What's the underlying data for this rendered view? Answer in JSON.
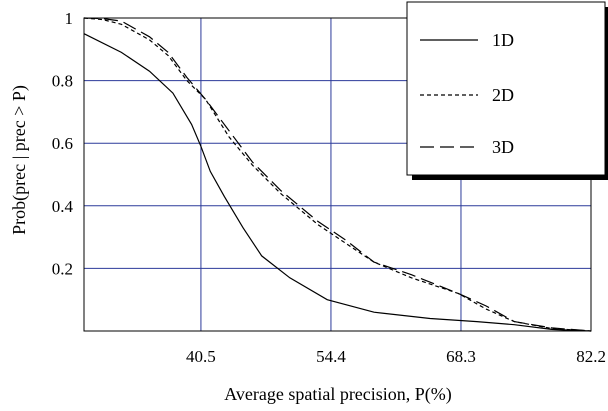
{
  "chart_data": {
    "type": "line",
    "xlabel": "Average spatial precision,  P(%)",
    "ylabel": "Prob(prec | prec > P)",
    "xlim": [
      28.0,
      82.2
    ],
    "ylim": [
      0,
      1.0
    ],
    "x_ticks": [
      "40.5",
      "54.4",
      "68.3",
      "82.2"
    ],
    "x_tick_values": [
      40.5,
      54.4,
      68.3,
      82.2
    ],
    "y_ticks": [
      "0.2",
      "0.4",
      "0.6",
      "0.8",
      "1"
    ],
    "y_tick_values": [
      0.2,
      0.4,
      0.6,
      0.8,
      1.0
    ],
    "grid": true,
    "legend_position": "top-right",
    "grid_color": "#2b3a9a",
    "series": [
      {
        "name": "1D",
        "dash": "solid",
        "x": [
          28.0,
          32.0,
          35.0,
          37.5,
          39.5,
          40.5,
          41.5,
          43.0,
          45.0,
          47.0,
          50.0,
          54.0,
          59.0,
          65.0,
          70.0,
          74.0,
          78.0,
          82.2
        ],
        "y": [
          0.95,
          0.89,
          0.83,
          0.76,
          0.66,
          0.59,
          0.51,
          0.43,
          0.33,
          0.24,
          0.17,
          0.1,
          0.06,
          0.04,
          0.03,
          0.02,
          0.005,
          0.0
        ]
      },
      {
        "name": "2D",
        "dash": "short-dash",
        "x": [
          28.0,
          30.0,
          32.0,
          35.0,
          37.0,
          39.0,
          41.0,
          43.5,
          46.0,
          49.0,
          53.0,
          56.0,
          59.0,
          63.0,
          68.0,
          71.0,
          74.0,
          78.0,
          82.2
        ],
        "y": [
          1.0,
          0.995,
          0.98,
          0.93,
          0.88,
          0.8,
          0.74,
          0.62,
          0.53,
          0.44,
          0.34,
          0.28,
          0.22,
          0.17,
          0.12,
          0.07,
          0.03,
          0.008,
          0.0
        ]
      },
      {
        "name": "3D",
        "dash": "long-dash",
        "x": [
          28.0,
          30.0,
          32.0,
          35.0,
          37.0,
          39.0,
          41.0,
          43.5,
          46.0,
          49.0,
          53.0,
          56.0,
          59.0,
          63.0,
          68.0,
          71.0,
          74.0,
          78.0,
          82.2
        ],
        "y": [
          1.0,
          0.998,
          0.99,
          0.94,
          0.89,
          0.81,
          0.74,
          0.64,
          0.54,
          0.45,
          0.35,
          0.29,
          0.22,
          0.18,
          0.12,
          0.08,
          0.03,
          0.01,
          0.0
        ]
      }
    ]
  }
}
